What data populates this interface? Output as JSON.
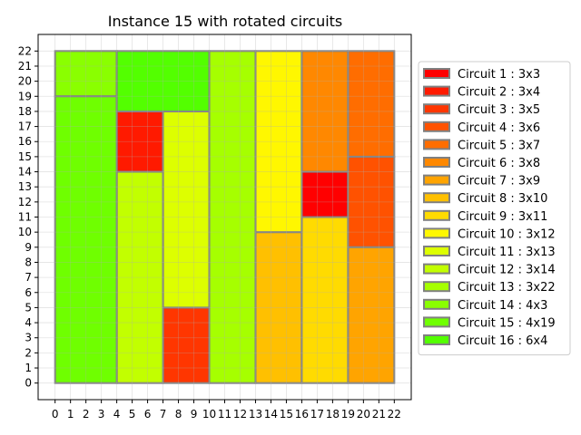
{
  "chart_data": {
    "type": "rectangle-packing",
    "title": "Instance 15 with rotated circuits",
    "xlim": [
      0,
      22
    ],
    "ylim": [
      0,
      22
    ],
    "xticks": [
      0,
      1,
      2,
      3,
      4,
      5,
      6,
      7,
      8,
      9,
      10,
      11,
      12,
      13,
      14,
      15,
      16,
      17,
      18,
      19,
      20,
      21,
      22
    ],
    "yticks": [
      0,
      1,
      2,
      3,
      4,
      5,
      6,
      7,
      8,
      9,
      10,
      11,
      12,
      13,
      14,
      15,
      16,
      17,
      18,
      19,
      20,
      21,
      22
    ],
    "grid": true,
    "legend_position": "right",
    "edge_color": "#808080",
    "circuits": [
      {
        "label": "Circuit 1 : 3x3",
        "x": 16,
        "y": 11,
        "w": 3,
        "h": 3,
        "color": "#ff0000"
      },
      {
        "label": "Circuit 2 : 3x4",
        "x": 4,
        "y": 14,
        "w": 3,
        "h": 4,
        "color": "#ff1a00"
      },
      {
        "label": "Circuit 3 : 3x5",
        "x": 7,
        "y": 0,
        "w": 3,
        "h": 5,
        "color": "#ff3600"
      },
      {
        "label": "Circuit 4 : 3x6",
        "x": 19,
        "y": 9,
        "w": 3,
        "h": 6,
        "color": "#ff5200"
      },
      {
        "label": "Circuit 5 : 3x7",
        "x": 19,
        "y": 15,
        "w": 3,
        "h": 7,
        "color": "#ff6d00"
      },
      {
        "label": "Circuit 6 : 3x8",
        "x": 16,
        "y": 14,
        "w": 3,
        "h": 8,
        "color": "#ff8800"
      },
      {
        "label": "Circuit 7 : 3x9",
        "x": 19,
        "y": 0,
        "w": 3,
        "h": 9,
        "color": "#ffa400"
      },
      {
        "label": "Circuit 8 : 3x10",
        "x": 13,
        "y": 0,
        "w": 3,
        "h": 10,
        "color": "#ffc000"
      },
      {
        "label": "Circuit 9 : 3x11",
        "x": 16,
        "y": 0,
        "w": 3,
        "h": 11,
        "color": "#ffdb00"
      },
      {
        "label": "Circuit 10 : 3x12",
        "x": 13,
        "y": 10,
        "w": 3,
        "h": 12,
        "color": "#fff700"
      },
      {
        "label": "Circuit 11 : 3x13",
        "x": 7,
        "y": 5,
        "w": 3,
        "h": 13,
        "color": "#ddff00"
      },
      {
        "label": "Circuit 12 : 3x14",
        "x": 4,
        "y": 0,
        "w": 3,
        "h": 14,
        "color": "#c2ff00"
      },
      {
        "label": "Circuit 13 : 3x22",
        "x": 10,
        "y": 0,
        "w": 3,
        "h": 22,
        "color": "#a6ff00"
      },
      {
        "label": "Circuit 14 : 4x3",
        "x": 0,
        "y": 19,
        "w": 4,
        "h": 3,
        "color": "#8aff00"
      },
      {
        "label": "Circuit 15 : 4x19",
        "x": 0,
        "y": 0,
        "w": 4,
        "h": 19,
        "color": "#6fff00"
      },
      {
        "label": "Circuit 16 : 6x4",
        "x": 4,
        "y": 18,
        "w": 6,
        "h": 4,
        "color": "#53ff00"
      }
    ]
  }
}
